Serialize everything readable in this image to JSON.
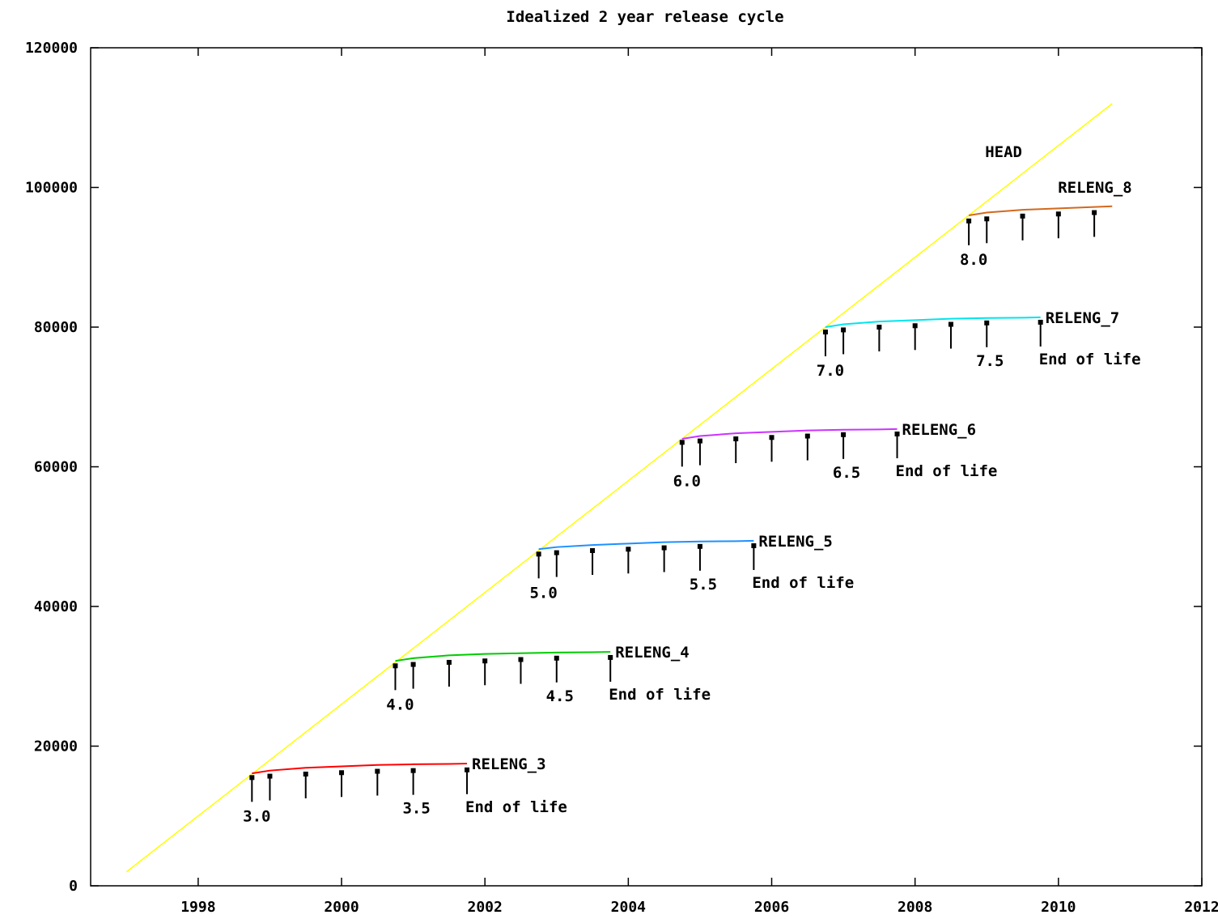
{
  "chart_data": {
    "type": "line",
    "title": "Idealized 2 year release cycle",
    "xlabel": "",
    "ylabel": "",
    "xlim": [
      1996.5,
      2012
    ],
    "ylim": [
      0,
      120000
    ],
    "grid": false,
    "x_ticks": [
      "1998",
      "2000",
      "2002",
      "2004",
      "2006",
      "2008",
      "2010",
      "2012"
    ],
    "y_ticks": [
      "0",
      "20000",
      "40000",
      "60000",
      "80000",
      "100000",
      "120000"
    ],
    "head": {
      "name": "HEAD",
      "color": "#ffff00",
      "x": [
        1997.0,
        2010.75
      ],
      "y": [
        2000,
        112000
      ]
    },
    "branches": [
      {
        "name": "RELENG_3",
        "color": "#ff0000",
        "x": [
          1998.75,
          1999.0,
          1999.5,
          2000.0,
          2000.5,
          2001.0,
          2001.5,
          2001.75
        ],
        "y": [
          16100,
          16500,
          16900,
          17100,
          17300,
          17400,
          17450,
          17500
        ],
        "releases": [
          {
            "x": 1998.75,
            "y": 15500
          },
          {
            "x": 1999.0,
            "y": 15700
          },
          {
            "x": 1999.5,
            "y": 16000
          },
          {
            "x": 2000.0,
            "y": 16200
          },
          {
            "x": 2000.5,
            "y": 16400
          },
          {
            "x": 2001.0,
            "y": 16500
          },
          {
            "x": 2001.75,
            "y": 16600
          }
        ],
        "labels": [
          "3.0",
          "3.5",
          "End of life"
        ]
      },
      {
        "name": "RELENG_4",
        "color": "#00cc00",
        "x": [
          2000.75,
          2001.0,
          2001.5,
          2002.0,
          2002.5,
          2003.0,
          2003.5,
          2003.75
        ],
        "y": [
          32200,
          32600,
          33000,
          33200,
          33300,
          33400,
          33450,
          33500
        ],
        "releases": [
          {
            "x": 2000.75,
            "y": 31500
          },
          {
            "x": 2001.0,
            "y": 31700
          },
          {
            "x": 2001.5,
            "y": 32000
          },
          {
            "x": 2002.0,
            "y": 32200
          },
          {
            "x": 2002.5,
            "y": 32400
          },
          {
            "x": 2003.0,
            "y": 32600
          },
          {
            "x": 2003.75,
            "y": 32700
          }
        ],
        "labels": [
          "4.0",
          "4.5",
          "End of life"
        ]
      },
      {
        "name": "RELENG_5",
        "color": "#1e90ff",
        "x": [
          2002.75,
          2003.0,
          2003.5,
          2004.0,
          2004.5,
          2005.0,
          2005.5,
          2005.75
        ],
        "y": [
          48200,
          48500,
          48800,
          49000,
          49200,
          49300,
          49350,
          49400
        ],
        "releases": [
          {
            "x": 2002.75,
            "y": 47500
          },
          {
            "x": 2003.0,
            "y": 47700
          },
          {
            "x": 2003.5,
            "y": 48000
          },
          {
            "x": 2004.0,
            "y": 48200
          },
          {
            "x": 2004.5,
            "y": 48400
          },
          {
            "x": 2005.0,
            "y": 48600
          },
          {
            "x": 2005.75,
            "y": 48700
          }
        ],
        "labels": [
          "5.0",
          "5.5",
          "End of life"
        ]
      },
      {
        "name": "RELENG_6",
        "color": "#cc33ff",
        "x": [
          2004.75,
          2005.0,
          2005.5,
          2006.0,
          2006.5,
          2007.0,
          2007.5,
          2007.75
        ],
        "y": [
          64000,
          64400,
          64800,
          65000,
          65200,
          65300,
          65350,
          65400
        ],
        "releases": [
          {
            "x": 2004.75,
            "y": 63500
          },
          {
            "x": 2005.0,
            "y": 63700
          },
          {
            "x": 2005.5,
            "y": 64000
          },
          {
            "x": 2006.0,
            "y": 64200
          },
          {
            "x": 2006.5,
            "y": 64400
          },
          {
            "x": 2007.0,
            "y": 64600
          },
          {
            "x": 2007.75,
            "y": 64700
          }
        ],
        "labels": [
          "6.0",
          "6.5",
          "End of life"
        ]
      },
      {
        "name": "RELENG_7",
        "color": "#00e5ee",
        "x": [
          2006.75,
          2007.0,
          2007.5,
          2008.0,
          2008.5,
          2009.0,
          2009.5,
          2009.75
        ],
        "y": [
          80000,
          80400,
          80800,
          81000,
          81200,
          81300,
          81350,
          81400
        ],
        "releases": [
          {
            "x": 2006.75,
            "y": 79300
          },
          {
            "x": 2007.0,
            "y": 79600
          },
          {
            "x": 2007.5,
            "y": 80000
          },
          {
            "x": 2008.0,
            "y": 80200
          },
          {
            "x": 2008.5,
            "y": 80400
          },
          {
            "x": 2009.0,
            "y": 80600
          },
          {
            "x": 2009.75,
            "y": 80700
          }
        ],
        "labels": [
          "7.0",
          "7.5",
          "End of life"
        ]
      },
      {
        "name": "RELENG_8",
        "color": "#d2691e",
        "x": [
          2008.75,
          2009.0,
          2009.5,
          2010.0,
          2010.5,
          2010.75
        ],
        "y": [
          96000,
          96400,
          96800,
          97000,
          97200,
          97300
        ],
        "releases": [
          {
            "x": 2008.75,
            "y": 95200
          },
          {
            "x": 2009.0,
            "y": 95500
          },
          {
            "x": 2009.5,
            "y": 95900
          },
          {
            "x": 2010.0,
            "y": 96200
          },
          {
            "x": 2010.5,
            "y": 96400
          }
        ],
        "labels": [
          "8.0"
        ]
      }
    ]
  }
}
